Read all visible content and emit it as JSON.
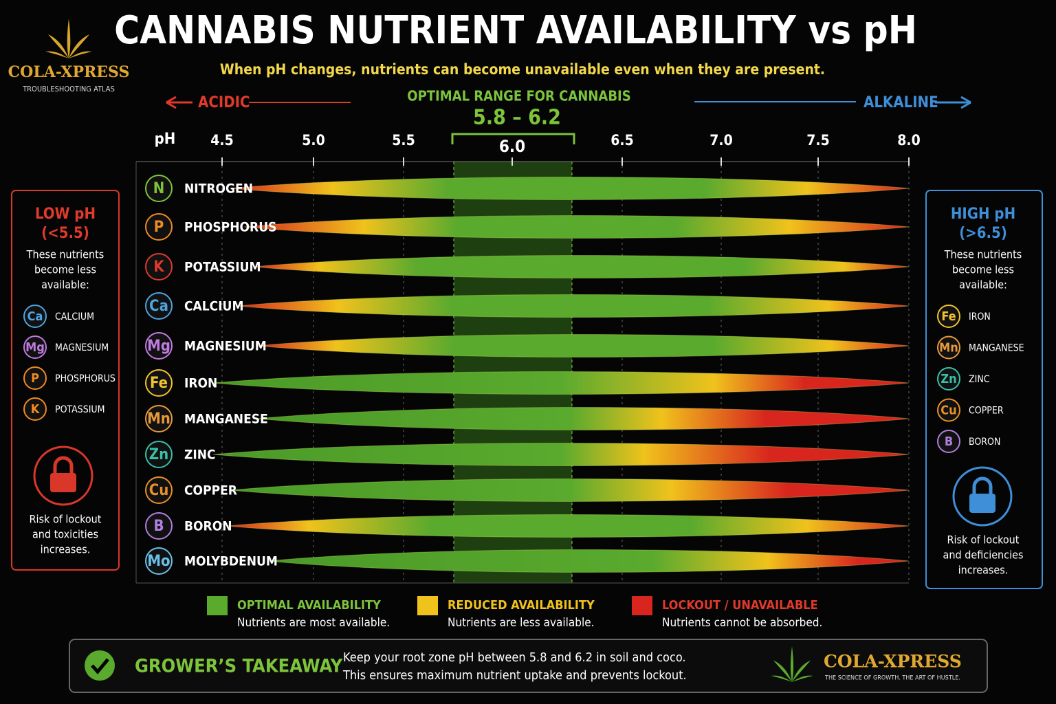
{
  "brand": {
    "name": "COLA-XPRESS",
    "tagline": "TROUBLESHOOTING ATLAS"
  },
  "title": "CANNABIS NUTRIENT AVAILABILITY vs pH",
  "subtitle": "When pH changes, nutrients can become unavailable even when they are present.",
  "acidic": "ACIDIC",
  "alkaline": "ALKALINE",
  "optimal": {
    "label": "OPTIMAL RANGE FOR CANNABIS",
    "range": "5.8 – 6.2",
    "center": "6.0"
  },
  "axis": {
    "label": "pH",
    "ticks": [
      "4.5",
      "5.0",
      "5.5",
      "6.5",
      "7.0",
      "7.5",
      "8.0"
    ]
  },
  "nutrients": [
    {
      "symbol": "N",
      "name": "NITROGEN"
    },
    {
      "symbol": "P",
      "name": "PHOSPHORUS"
    },
    {
      "symbol": "K",
      "name": "POTASSIUM"
    },
    {
      "symbol": "Ca",
      "name": "CALCIUM"
    },
    {
      "symbol": "Mg",
      "name": "MAGNESIUM"
    },
    {
      "symbol": "Fe",
      "name": "IRON"
    },
    {
      "symbol": "Mn",
      "name": "MANGANESE"
    },
    {
      "symbol": "Zn",
      "name": "ZINC"
    },
    {
      "symbol": "Cu",
      "name": "COPPER"
    },
    {
      "symbol": "B",
      "name": "BORON"
    },
    {
      "symbol": "Mo",
      "name": "MOLYBDENUM"
    }
  ],
  "low_panel": {
    "title": "LOW pH",
    "range": "(<5.5)",
    "text": [
      "These nutrients",
      "become less",
      "available:"
    ],
    "items": [
      {
        "symbol": "Ca",
        "name": "CALCIUM"
      },
      {
        "symbol": "Mg",
        "name": "MAGNESIUM"
      },
      {
        "symbol": "P",
        "name": "PHOSPHORUS"
      },
      {
        "symbol": "K",
        "name": "POTASSIUM"
      }
    ],
    "footer": [
      "Risk of lockout",
      "and toxicities",
      "increases."
    ]
  },
  "high_panel": {
    "title": "HIGH pH",
    "range": "(>6.5)",
    "text": [
      "These nutrients",
      "become less",
      "available:"
    ],
    "items": [
      {
        "symbol": "Fe",
        "name": "IRON"
      },
      {
        "symbol": "Mn",
        "name": "MANGANESE"
      },
      {
        "symbol": "Zn",
        "name": "ZINC"
      },
      {
        "symbol": "Cu",
        "name": "COPPER"
      },
      {
        "symbol": "B",
        "name": "BORON"
      }
    ],
    "footer": [
      "Risk of lockout",
      "and deficiencies",
      "increases."
    ]
  },
  "legend": [
    {
      "title": "OPTIMAL AVAILABILITY",
      "text": "Nutrients are most available."
    },
    {
      "title": "REDUCED AVAILABILITY",
      "text": "Nutrients are less available."
    },
    {
      "title": "LOCKOUT / UNAVAILABLE",
      "text": "Nutrients cannot be absorbed."
    }
  ],
  "takeaway": {
    "title": "GROWER’S TAKEAWAY",
    "lines": [
      "Keep your root zone pH between 5.8 and 6.2 in soil and coco.",
      "This ensures maximum nutrient uptake and prevents lockout."
    ]
  },
  "footer_brand": {
    "name": "COLA-XPRESS",
    "tagline": "THE SCIENCE OF GROWTH. THE ART OF HUSTLE."
  }
}
